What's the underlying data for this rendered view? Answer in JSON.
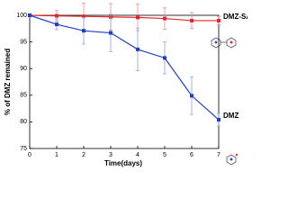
{
  "chart_data": {
    "type": "line",
    "xlabel": "Time(days)",
    "ylabel": "% of DMZ remained",
    "x": [
      0,
      1,
      2,
      3,
      4,
      5,
      6,
      7
    ],
    "series": [
      {
        "name": "DMZ-SAC",
        "color": "#e8242a",
        "error_color": "#f08a8a",
        "values": [
          100,
          99.9,
          99.8,
          99.7,
          99.6,
          99.4,
          99.0,
          99.0
        ],
        "errors": [
          0.3,
          1.0,
          2.5,
          2.5,
          2.5,
          2.0,
          1.5,
          0.8
        ]
      },
      {
        "name": "DMZ",
        "color": "#1f3fc8",
        "error_color": "#8fa3e0",
        "values": [
          100,
          98.3,
          97.1,
          96.7,
          93.6,
          92.0,
          84.9,
          80.4
        ],
        "errors": [
          0,
          1.0,
          2.5,
          3.5,
          4.0,
          3.0,
          3.5,
          1.2
        ]
      }
    ],
    "xlim": [
      0,
      7
    ],
    "xticks": [
      0,
      1,
      2,
      3,
      4,
      5,
      6,
      7
    ],
    "ylim": [
      75,
      100
    ],
    "yticks": [
      75,
      80,
      85,
      90,
      95,
      100
    ]
  }
}
